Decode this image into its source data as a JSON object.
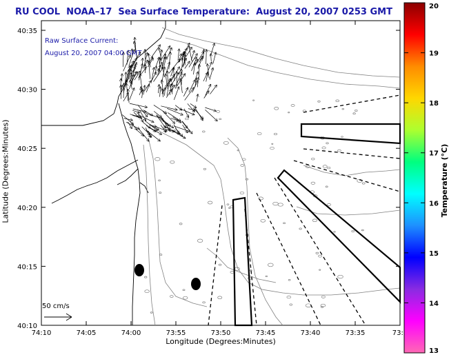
{
  "title": "RU COOL  NOAA–17  Sea Surface Temperature:  August 20, 2007 0253 GMT",
  "annotation": {
    "line1": "Raw Surface Current:",
    "line2": "August 20, 2007 04:00 GMT"
  },
  "axes": {
    "xlabel": "Longitude (Degrees:Minutes)",
    "ylabel": "Latitude (Degrees:Minutes)",
    "x_ticks": [
      "74:10",
      "74:05",
      "74:00",
      "73:55",
      "73:50",
      "73:45",
      "73:40",
      "73:35",
      "73:3"
    ],
    "y_ticks": [
      "40:35",
      "40:30",
      "40:25",
      "40:20",
      "40:15",
      "40:10"
    ]
  },
  "scale_label": "50 cm/s",
  "colorbar": {
    "label": "Temperature (°C)",
    "ticks": [
      "20",
      "19",
      "18",
      "17",
      "16",
      "15",
      "14",
      "13"
    ],
    "colors": [
      "#8b0000",
      "#ff0000",
      "#ff8c00",
      "#ffd700",
      "#adff2f",
      "#00ff7f",
      "#00ffff",
      "#1e90ff",
      "#0000ff",
      "#8a2be2",
      "#ff00ff",
      "#ff69b4"
    ]
  },
  "colors": {
    "title": "#1a1aa8",
    "annotation": "#1a1aa8"
  }
}
